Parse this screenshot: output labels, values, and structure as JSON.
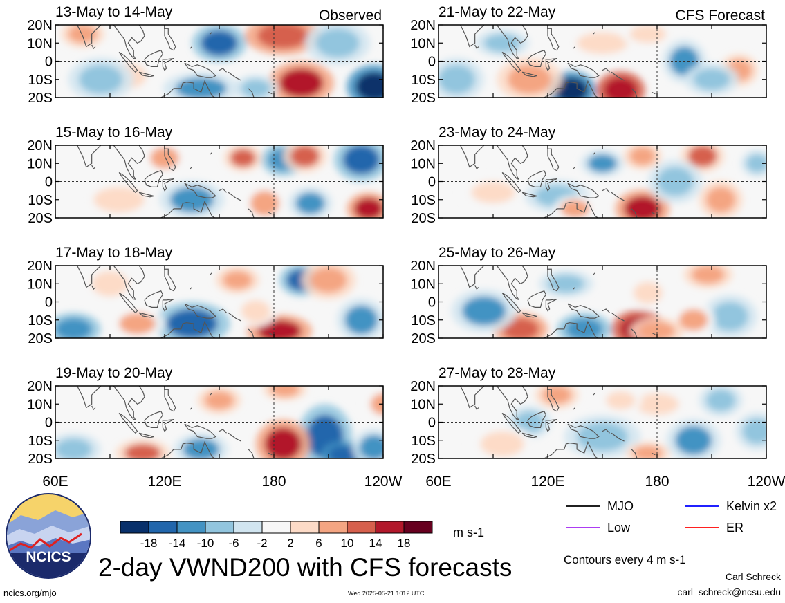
{
  "chart_data": [
    {
      "type": "heatmap",
      "title": "13-May to 14-May",
      "label": "Observed",
      "anomalies": [
        {
          "lon": 150,
          "lat": 10,
          "v": -14,
          "rx": 10,
          "ry": 7
        },
        {
          "lon": 185,
          "lat": 14,
          "v": 14,
          "rx": 14,
          "ry": 7
        },
        {
          "lon": 195,
          "lat": -12,
          "v": 16,
          "rx": 12,
          "ry": 8
        },
        {
          "lon": 235,
          "lat": -14,
          "v": -18,
          "rx": 10,
          "ry": 8
        },
        {
          "lon": 215,
          "lat": 10,
          "v": -8,
          "rx": 12,
          "ry": 8
        },
        {
          "lon": 140,
          "lat": -15,
          "v": -10,
          "rx": 14,
          "ry": 6
        },
        {
          "lon": 100,
          "lat": -8,
          "v": 6,
          "rx": 10,
          "ry": 7
        },
        {
          "lon": 75,
          "lat": 15,
          "v": 10,
          "rx": 8,
          "ry": 5
        },
        {
          "lon": 85,
          "lat": -10,
          "v": -6,
          "rx": 12,
          "ry": 8
        },
        {
          "lon": 170,
          "lat": -15,
          "v": -8,
          "rx": 8,
          "ry": 5
        }
      ]
    },
    {
      "type": "heatmap",
      "title": "15-May to 16-May",
      "anomalies": [
        {
          "lon": 163,
          "lat": 13,
          "v": 12,
          "rx": 7,
          "ry": 5
        },
        {
          "lon": 185,
          "lat": 12,
          "v": -12,
          "rx": 8,
          "ry": 6
        },
        {
          "lon": 197,
          "lat": 14,
          "v": 12,
          "rx": 8,
          "ry": 6
        },
        {
          "lon": 228,
          "lat": 12,
          "v": -14,
          "rx": 10,
          "ry": 8
        },
        {
          "lon": 232,
          "lat": -15,
          "v": 16,
          "rx": 8,
          "ry": 6
        },
        {
          "lon": 135,
          "lat": -10,
          "v": -10,
          "rx": 12,
          "ry": 7
        },
        {
          "lon": 120,
          "lat": 13,
          "v": 8,
          "rx": 8,
          "ry": 6
        },
        {
          "lon": 95,
          "lat": -10,
          "v": 6,
          "rx": 14,
          "ry": 7
        },
        {
          "lon": 175,
          "lat": -12,
          "v": 8,
          "rx": 8,
          "ry": 7
        },
        {
          "lon": 200,
          "lat": -12,
          "v": -10,
          "rx": 8,
          "ry": 6
        }
      ]
    },
    {
      "type": "heatmap",
      "title": "17-May to 18-May",
      "anomalies": [
        {
          "lon": 160,
          "lat": 12,
          "v": 10,
          "rx": 8,
          "ry": 5
        },
        {
          "lon": 195,
          "lat": 12,
          "v": -14,
          "rx": 8,
          "ry": 6
        },
        {
          "lon": 210,
          "lat": 12,
          "v": 10,
          "rx": 10,
          "ry": 7
        },
        {
          "lon": 135,
          "lat": -12,
          "v": -14,
          "rx": 14,
          "ry": 8
        },
        {
          "lon": 183,
          "lat": -16,
          "v": 16,
          "rx": 12,
          "ry": 6
        },
        {
          "lon": 70,
          "lat": -15,
          "v": -12,
          "rx": 10,
          "ry": 6
        },
        {
          "lon": 105,
          "lat": -12,
          "v": 8,
          "rx": 10,
          "ry": 6
        },
        {
          "lon": 228,
          "lat": -10,
          "v": -10,
          "rx": 9,
          "ry": 8
        },
        {
          "lon": 90,
          "lat": 10,
          "v": 6,
          "rx": 10,
          "ry": 7
        },
        {
          "lon": 170,
          "lat": -5,
          "v": 6,
          "rx": 8,
          "ry": 6
        }
      ]
    },
    {
      "type": "heatmap",
      "title": "19-May to 20-May",
      "anomalies": [
        {
          "lon": 186,
          "lat": 18,
          "v": 10,
          "rx": 8,
          "ry": 4
        },
        {
          "lon": 208,
          "lat": -8,
          "v": -14,
          "rx": 10,
          "ry": 12
        },
        {
          "lon": 218,
          "lat": -18,
          "v": -16,
          "rx": 8,
          "ry": 5
        },
        {
          "lon": 185,
          "lat": -12,
          "v": 16,
          "rx": 10,
          "ry": 9
        },
        {
          "lon": 108,
          "lat": -17,
          "v": 12,
          "rx": 10,
          "ry": 5
        },
        {
          "lon": 140,
          "lat": -15,
          "v": -10,
          "rx": 10,
          "ry": 6
        },
        {
          "lon": 150,
          "lat": 12,
          "v": 10,
          "rx": 8,
          "ry": 5
        },
        {
          "lon": 70,
          "lat": -15,
          "v": -8,
          "rx": 10,
          "ry": 6
        },
        {
          "lon": 235,
          "lat": -14,
          "v": -10,
          "rx": 8,
          "ry": 7
        },
        {
          "lon": 240,
          "lat": 10,
          "v": 8,
          "rx": 7,
          "ry": 6
        }
      ]
    },
    {
      "type": "heatmap",
      "title": "21-May to 22-May",
      "label": "CFS Forecast",
      "anomalies": [
        {
          "lon": 133,
          "lat": -16,
          "v": -18,
          "rx": 9,
          "ry": 7
        },
        {
          "lon": 160,
          "lat": -16,
          "v": 18,
          "rx": 9,
          "ry": 7
        },
        {
          "lon": 110,
          "lat": -10,
          "v": 10,
          "rx": 12,
          "ry": 8
        },
        {
          "lon": 195,
          "lat": 0,
          "v": -10,
          "rx": 8,
          "ry": 8
        },
        {
          "lon": 225,
          "lat": -5,
          "v": 10,
          "rx": 7,
          "ry": 6
        },
        {
          "lon": 70,
          "lat": -10,
          "v": -8,
          "rx": 10,
          "ry": 8
        },
        {
          "lon": 150,
          "lat": 10,
          "v": 6,
          "rx": 14,
          "ry": 6
        },
        {
          "lon": 210,
          "lat": -10,
          "v": -6,
          "rx": 10,
          "ry": 6
        },
        {
          "lon": 175,
          "lat": 15,
          "v": 6,
          "rx": 10,
          "ry": 5
        },
        {
          "lon": 95,
          "lat": 10,
          "v": -6,
          "rx": 10,
          "ry": 5
        }
      ]
    },
    {
      "type": "heatmap",
      "title": "23-May to 24-May",
      "anomalies": [
        {
          "lon": 172,
          "lat": -15,
          "v": 16,
          "rx": 10,
          "ry": 7
        },
        {
          "lon": 150,
          "lat": 10,
          "v": -10,
          "rx": 8,
          "ry": 5
        },
        {
          "lon": 172,
          "lat": 14,
          "v": 10,
          "rx": 7,
          "ry": 5
        },
        {
          "lon": 205,
          "lat": 14,
          "v": 12,
          "rx": 8,
          "ry": 6
        },
        {
          "lon": 215,
          "lat": -10,
          "v": 10,
          "rx": 8,
          "ry": 7
        },
        {
          "lon": 125,
          "lat": -8,
          "v": -6,
          "rx": 12,
          "ry": 6
        },
        {
          "lon": 90,
          "lat": -6,
          "v": 6,
          "rx": 12,
          "ry": 6
        },
        {
          "lon": 190,
          "lat": 0,
          "v": -6,
          "rx": 10,
          "ry": 8
        },
        {
          "lon": 135,
          "lat": -15,
          "v": 8,
          "rx": 8,
          "ry": 5
        },
        {
          "lon": 235,
          "lat": 10,
          "v": -6,
          "rx": 6,
          "ry": 5
        }
      ]
    },
    {
      "type": "heatmap",
      "title": "25-May to 26-May",
      "anomalies": [
        {
          "lon": 170,
          "lat": -15,
          "v": 18,
          "rx": 10,
          "ry": 7
        },
        {
          "lon": 140,
          "lat": -15,
          "v": -12,
          "rx": 10,
          "ry": 6
        },
        {
          "lon": 105,
          "lat": -15,
          "v": 14,
          "rx": 10,
          "ry": 6
        },
        {
          "lon": 85,
          "lat": -5,
          "v": -10,
          "rx": 12,
          "ry": 8
        },
        {
          "lon": 208,
          "lat": 15,
          "v": 10,
          "rx": 9,
          "ry": 5
        },
        {
          "lon": 220,
          "lat": -8,
          "v": -8,
          "rx": 10,
          "ry": 8
        },
        {
          "lon": 200,
          "lat": -10,
          "v": 8,
          "rx": 8,
          "ry": 6
        },
        {
          "lon": 175,
          "lat": 5,
          "v": 6,
          "rx": 8,
          "ry": 6
        },
        {
          "lon": 130,
          "lat": 10,
          "v": -6,
          "rx": 10,
          "ry": 5
        },
        {
          "lon": 180,
          "lat": -16,
          "v": 10,
          "rx": 10,
          "ry": 5
        }
      ]
    },
    {
      "type": "heatmap",
      "title": "27-May to 28-May",
      "anomalies": [
        {
          "lon": 125,
          "lat": 15,
          "v": 10,
          "rx": 8,
          "ry": 5
        },
        {
          "lon": 110,
          "lat": 0,
          "v": -8,
          "rx": 8,
          "ry": 6
        },
        {
          "lon": 150,
          "lat": -8,
          "v": -8,
          "rx": 14,
          "ry": 8
        },
        {
          "lon": 200,
          "lat": -10,
          "v": -10,
          "rx": 10,
          "ry": 8
        },
        {
          "lon": 175,
          "lat": -17,
          "v": 10,
          "rx": 8,
          "ry": 4
        },
        {
          "lon": 95,
          "lat": -12,
          "v": 6,
          "rx": 12,
          "ry": 7
        },
        {
          "lon": 180,
          "lat": 10,
          "v": 6,
          "rx": 12,
          "ry": 6
        },
        {
          "lon": 215,
          "lat": 12,
          "v": -6,
          "rx": 8,
          "ry": 6
        },
        {
          "lon": 235,
          "lat": -5,
          "v": -6,
          "rx": 8,
          "ry": 7
        },
        {
          "lon": 160,
          "lat": 12,
          "v": 6,
          "rx": 8,
          "ry": 5
        }
      ]
    }
  ],
  "axes": {
    "lat_ticks": [
      "20N",
      "10N",
      "0",
      "10S",
      "20S"
    ],
    "lon_ticks": [
      "60E",
      "120E",
      "180",
      "120W"
    ],
    "lon_range": [
      60,
      240
    ],
    "lat_range": [
      -20,
      20
    ]
  },
  "colorbar": {
    "ticks": [
      "-18",
      "-14",
      "-10",
      "-6",
      "-2",
      "2",
      "6",
      "10",
      "14",
      "18"
    ],
    "colors": [
      "#08306b",
      "#2166ac",
      "#4393c3",
      "#92c5de",
      "#d1e5f0",
      "#f7f7f7",
      "#fddbc7",
      "#f4a582",
      "#d6604d",
      "#b2182b",
      "#67001f"
    ],
    "units": "m s-1"
  },
  "legend": [
    {
      "label": "MJO",
      "color": "#000000"
    },
    {
      "label": "Kelvin x2",
      "color": "#0000ff"
    },
    {
      "label": "Low",
      "color": "#a020f0"
    },
    {
      "label": "ER",
      "color": "#ff0000"
    }
  ],
  "main_title": "2-day VWND200 with CFS forecasts",
  "contour_note": "Contours every 4 m s-1",
  "author_name": "Carl Schreck",
  "author_email": "carl_schreck@ncsu.edu",
  "site_url": "ncics.org/mjo",
  "timestamp": "Wed 2025-05-21 1012 UTC",
  "logo_text": "NCICS"
}
